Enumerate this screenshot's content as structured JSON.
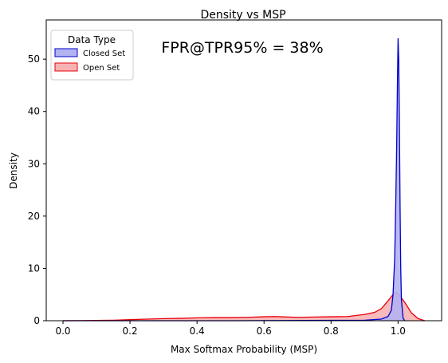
{
  "chart_data": {
    "type": "area",
    "title": "Density vs MSP",
    "xlabel": "Max Softmax Probability (MSP)",
    "ylabel": "Density",
    "xlim": [
      -0.05,
      1.13
    ],
    "ylim": [
      0,
      57.5
    ],
    "xticks": [
      "0.0",
      "0.2",
      "0.4",
      "0.6",
      "0.8",
      "1.0"
    ],
    "xtick_values": [
      0.0,
      0.2,
      0.4,
      0.6,
      0.8,
      1.0
    ],
    "yticks": [
      "0",
      "10",
      "20",
      "30",
      "40",
      "50"
    ],
    "ytick_values": [
      0,
      10,
      20,
      30,
      40,
      50
    ],
    "grid": false,
    "legend": {
      "title": "Data Type",
      "placement": "top-left"
    },
    "annotation": "FPR@TPR95% = 38%",
    "series": [
      {
        "name": "Closed Set",
        "color": "#0000cc",
        "fill": "#b3b3f2",
        "x": [
          0.0,
          0.5,
          0.9,
          0.95,
          0.97,
          0.98,
          0.985,
          0.99,
          0.993,
          0.996,
          0.998,
          1.0,
          1.002,
          1.004,
          1.006,
          1.008,
          1.01,
          1.015,
          1.02
        ],
        "y": [
          0.0,
          0.0,
          0.1,
          0.3,
          0.8,
          2.0,
          5.0,
          12.0,
          22.0,
          34.0,
          45.0,
          54.0,
          50.0,
          38.0,
          22.0,
          10.0,
          4.0,
          0.5,
          0.0
        ]
      },
      {
        "name": "Open Set",
        "color": "#e8000b",
        "fill": "#f7b3b3",
        "x": [
          0.0,
          0.05,
          0.1,
          0.15,
          0.2,
          0.25,
          0.3,
          0.35,
          0.4,
          0.45,
          0.5,
          0.55,
          0.6,
          0.63,
          0.65,
          0.7,
          0.75,
          0.8,
          0.85,
          0.9,
          0.93,
          0.95,
          0.97,
          0.99,
          1.0,
          1.02,
          1.04,
          1.06,
          1.08
        ],
        "y": [
          0.0,
          0.02,
          0.05,
          0.1,
          0.2,
          0.3,
          0.4,
          0.45,
          0.55,
          0.6,
          0.6,
          0.65,
          0.75,
          0.8,
          0.75,
          0.65,
          0.7,
          0.75,
          0.8,
          1.2,
          1.6,
          2.3,
          3.8,
          5.4,
          5.2,
          3.5,
          1.5,
          0.4,
          0.0
        ]
      }
    ]
  }
}
